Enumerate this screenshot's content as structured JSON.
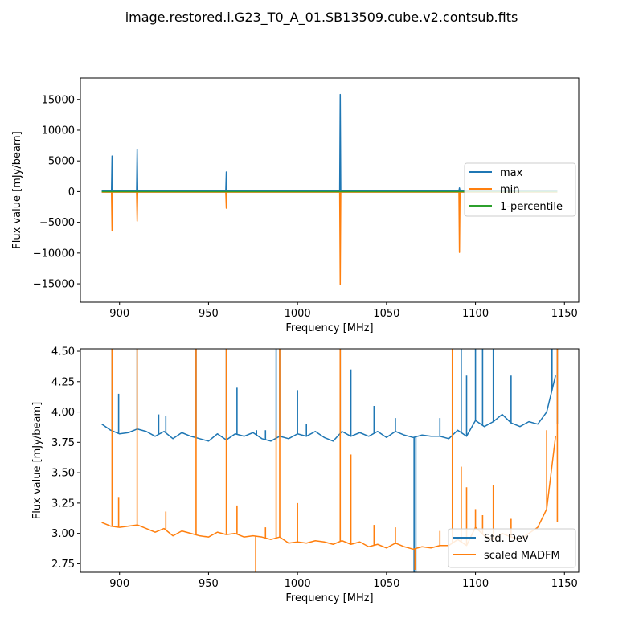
{
  "figure": {
    "title": "image.restored.i.G23_T0_A_01.SB13509.cube.v2.contsub.fits"
  },
  "colors": {
    "series1": "#1f77b4",
    "series2": "#ff7f0e",
    "series3": "#2ca02c"
  },
  "chart_data": [
    {
      "type": "line",
      "xlabel": "Frequency [MHz]",
      "ylabel": "Flux value [mJy/beam]",
      "xlim": [
        878,
        1158
      ],
      "ylim": [
        -18000,
        18500
      ],
      "xticks": [
        900,
        950,
        1000,
        1050,
        1100,
        1150
      ],
      "yticks": [
        -15000,
        -10000,
        -5000,
        0,
        5000,
        10000,
        15000
      ],
      "legend_position": "center-right",
      "grid": false,
      "series": [
        {
          "name": "max",
          "color": "#1f77b4",
          "x": [
            890,
            895.5,
            895.8,
            896.1,
            909.6,
            909.9,
            910.2,
            959.7,
            960,
            960.3,
            1023.7,
            1024,
            1024.3,
            1090.7,
            1091,
            1091.3,
            1146
          ],
          "y": [
            120,
            120,
            5800,
            120,
            120,
            6900,
            120,
            120,
            3200,
            120,
            120,
            15800,
            120,
            120,
            600,
            120,
            120
          ]
        },
        {
          "name": "min",
          "color": "#ff7f0e",
          "x": [
            890,
            895.5,
            895.8,
            896.1,
            909.6,
            909.9,
            910.2,
            959.7,
            960,
            960.3,
            1023.7,
            1024,
            1024.3,
            1090.7,
            1091,
            1091.3,
            1146
          ],
          "y": [
            -100,
            -100,
            -6400,
            -100,
            -100,
            -4800,
            -100,
            -100,
            -2700,
            -100,
            -100,
            -15100,
            -100,
            -100,
            -9900,
            -100,
            -100
          ]
        },
        {
          "name": "1-percentile",
          "color": "#2ca02c",
          "x": [
            890,
            1146
          ],
          "y": [
            -9,
            -9
          ]
        }
      ]
    },
    {
      "type": "line",
      "xlabel": "Frequency [MHz]",
      "ylabel": "Flux value [mJy/beam]",
      "xlim": [
        878,
        1158
      ],
      "ylim": [
        2.68,
        4.52
      ],
      "xticks": [
        900,
        950,
        1000,
        1050,
        1100,
        1150
      ],
      "yticks": [
        2.75,
        3.0,
        3.25,
        3.5,
        3.75,
        4.0,
        4.25,
        4.5
      ],
      "legend_position": "lower-right",
      "grid": false,
      "series": [
        {
          "name": "Std. Dev",
          "color": "#1f77b4",
          "x": [
            890,
            895,
            900,
            905,
            910,
            915,
            920,
            925,
            930,
            935,
            940,
            945,
            950,
            955,
            960,
            965,
            970,
            975,
            980,
            985,
            990,
            995,
            1000,
            1005,
            1010,
            1015,
            1020,
            1025,
            1030,
            1035,
            1040,
            1045,
            1050,
            1055,
            1060,
            1065,
            1070,
            1075,
            1080,
            1085,
            1090,
            1095,
            1100,
            1105,
            1110,
            1115,
            1120,
            1125,
            1130,
            1135,
            1140,
            1145
          ],
          "y": [
            3.9,
            3.85,
            3.82,
            3.83,
            3.86,
            3.84,
            3.8,
            3.84,
            3.78,
            3.83,
            3.8,
            3.78,
            3.76,
            3.82,
            3.77,
            3.82,
            3.8,
            3.83,
            3.78,
            3.76,
            3.8,
            3.78,
            3.82,
            3.8,
            3.84,
            3.79,
            3.76,
            3.84,
            3.8,
            3.83,
            3.8,
            3.84,
            3.79,
            3.84,
            3.81,
            3.79,
            3.81,
            3.8,
            3.8,
            3.78,
            3.85,
            3.8,
            3.93,
            3.88,
            3.92,
            3.98,
            3.91,
            3.88,
            3.92,
            3.9,
            4.0,
            4.3
          ],
          "spikes": [
            {
              "x": 895.8,
              "y": 4.52
            },
            {
              "x": 899.5,
              "y": 4.15
            },
            {
              "x": 909.9,
              "y": 4.52
            },
            {
              "x": 922,
              "y": 3.98
            },
            {
              "x": 926,
              "y": 3.97
            },
            {
              "x": 943,
              "y": 4.52
            },
            {
              "x": 960,
              "y": 4.52
            },
            {
              "x": 966,
              "y": 4.2
            },
            {
              "x": 977,
              "y": 3.85
            },
            {
              "x": 982,
              "y": 3.85
            },
            {
              "x": 988,
              "y": 4.52
            },
            {
              "x": 990,
              "y": 4.52
            },
            {
              "x": 1000,
              "y": 4.18
            },
            {
              "x": 1005,
              "y": 3.9
            },
            {
              "x": 1024,
              "y": 4.52
            },
            {
              "x": 1030,
              "y": 4.35
            },
            {
              "x": 1043,
              "y": 4.05
            },
            {
              "x": 1055,
              "y": 3.95
            },
            {
              "x": 1065.5,
              "y": 2.68
            },
            {
              "x": 1066.5,
              "y": 2.68
            },
            {
              "x": 1080,
              "y": 3.95
            },
            {
              "x": 1087,
              "y": 4.52
            },
            {
              "x": 1092,
              "y": 4.52
            },
            {
              "x": 1095,
              "y": 4.3
            },
            {
              "x": 1100,
              "y": 4.52
            },
            {
              "x": 1104,
              "y": 4.52
            },
            {
              "x": 1110,
              "y": 4.52
            },
            {
              "x": 1120,
              "y": 4.3
            },
            {
              "x": 1143,
              "y": 4.52
            },
            {
              "x": 1146,
              "y": 4.52
            }
          ]
        },
        {
          "name": "scaled MADFM",
          "color": "#ff7f0e",
          "x": [
            890,
            895,
            900,
            905,
            910,
            915,
            920,
            925,
            930,
            935,
            940,
            945,
            950,
            955,
            960,
            965,
            970,
            975,
            980,
            985,
            990,
            995,
            1000,
            1005,
            1010,
            1015,
            1020,
            1025,
            1030,
            1035,
            1040,
            1045,
            1050,
            1055,
            1060,
            1065,
            1070,
            1075,
            1080,
            1085,
            1090,
            1095,
            1100,
            1105,
            1110,
            1115,
            1120,
            1125,
            1130,
            1135,
            1140,
            1145
          ],
          "y": [
            3.09,
            3.06,
            3.05,
            3.06,
            3.07,
            3.04,
            3.01,
            3.04,
            2.98,
            3.02,
            3.0,
            2.98,
            2.97,
            3.01,
            2.99,
            3.0,
            2.97,
            2.98,
            2.97,
            2.95,
            2.97,
            2.92,
            2.93,
            2.92,
            2.94,
            2.93,
            2.91,
            2.94,
            2.91,
            2.93,
            2.89,
            2.91,
            2.88,
            2.92,
            2.89,
            2.87,
            2.89,
            2.88,
            2.9,
            2.9,
            2.95,
            2.9,
            3.05,
            2.98,
            2.95,
            3.0,
            2.97,
            2.95,
            3.0,
            3.05,
            3.2,
            3.8
          ],
          "spikes": [
            {
              "x": 895.8,
              "y": 4.52
            },
            {
              "x": 899.5,
              "y": 3.3
            },
            {
              "x": 909.9,
              "y": 4.52
            },
            {
              "x": 926,
              "y": 3.18
            },
            {
              "x": 943,
              "y": 4.52
            },
            {
              "x": 960,
              "y": 4.52
            },
            {
              "x": 966,
              "y": 3.23
            },
            {
              "x": 976.5,
              "y": 2.68
            },
            {
              "x": 982,
              "y": 3.05
            },
            {
              "x": 988,
              "y": 3.85
            },
            {
              "x": 990,
              "y": 4.52
            },
            {
              "x": 1000,
              "y": 3.25
            },
            {
              "x": 1024,
              "y": 4.52
            },
            {
              "x": 1030,
              "y": 3.65
            },
            {
              "x": 1043,
              "y": 3.07
            },
            {
              "x": 1055,
              "y": 3.05
            },
            {
              "x": 1066,
              "y": 2.7
            },
            {
              "x": 1080,
              "y": 3.02
            },
            {
              "x": 1087,
              "y": 4.52
            },
            {
              "x": 1092,
              "y": 3.55
            },
            {
              "x": 1095,
              "y": 3.38
            },
            {
              "x": 1100,
              "y": 3.2
            },
            {
              "x": 1104,
              "y": 3.15
            },
            {
              "x": 1110,
              "y": 3.4
            },
            {
              "x": 1120,
              "y": 3.12
            },
            {
              "x": 1140,
              "y": 3.85
            },
            {
              "x": 1146,
              "y": 4.52
            }
          ]
        }
      ]
    }
  ]
}
